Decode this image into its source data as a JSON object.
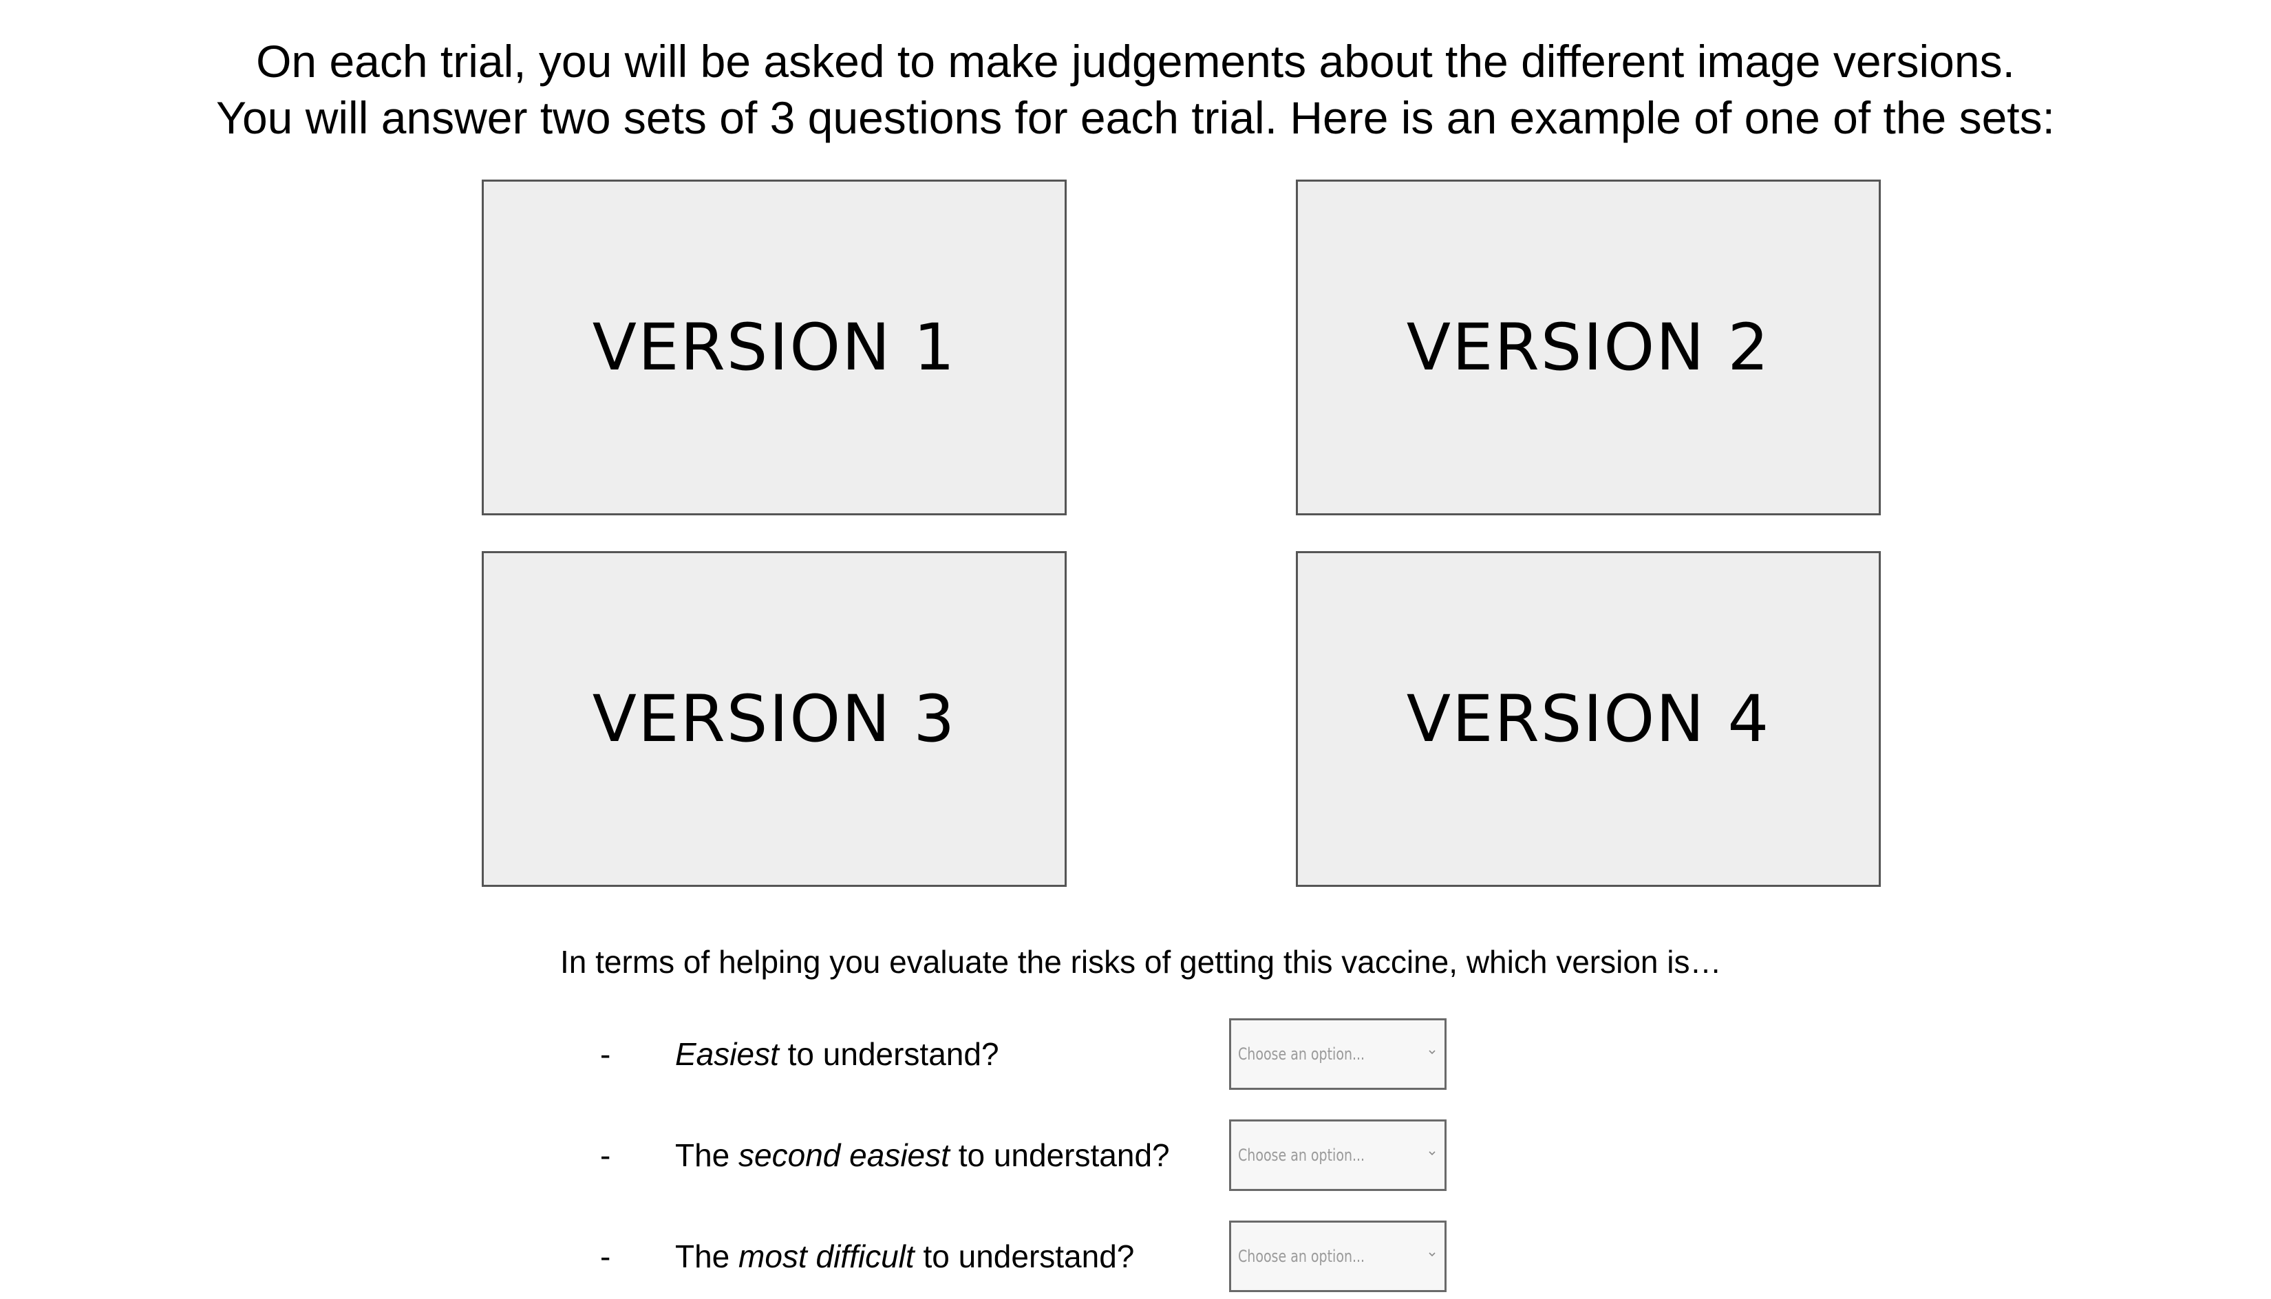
{
  "instructions": {
    "line1": "On each trial, you will be asked to make judgements about the different image versions.",
    "line2": "You will answer two sets of 3 questions for each trial. Here is an example of one of the sets:"
  },
  "versions": [
    {
      "label": "VERSION 1"
    },
    {
      "label": "VERSION 2"
    },
    {
      "label": "VERSION 3"
    },
    {
      "label": "VERSION 4"
    }
  ],
  "prompt": "In terms of helping you evaluate the risks of getting this vaccine, which version is…",
  "questions": [
    {
      "dash": "-",
      "pre": "",
      "emphasis": "Easiest",
      "post": " to understand?",
      "select_placeholder": "Choose an option..."
    },
    {
      "dash": "-",
      "pre": "The ",
      "emphasis": "second easiest",
      "post": " to understand?",
      "select_placeholder": "Choose an option..."
    },
    {
      "dash": "-",
      "pre": "The ",
      "emphasis": "most difficult",
      "post": " to understand?",
      "select_placeholder": "Choose an option..."
    }
  ],
  "icons": {
    "select_chevron": "chevron-down-icon"
  },
  "colors": {
    "box_fill": "#eeeeee",
    "box_border": "#555555",
    "select_fill": "#f7f7f7",
    "placeholder_text": "#9a9a9a"
  }
}
